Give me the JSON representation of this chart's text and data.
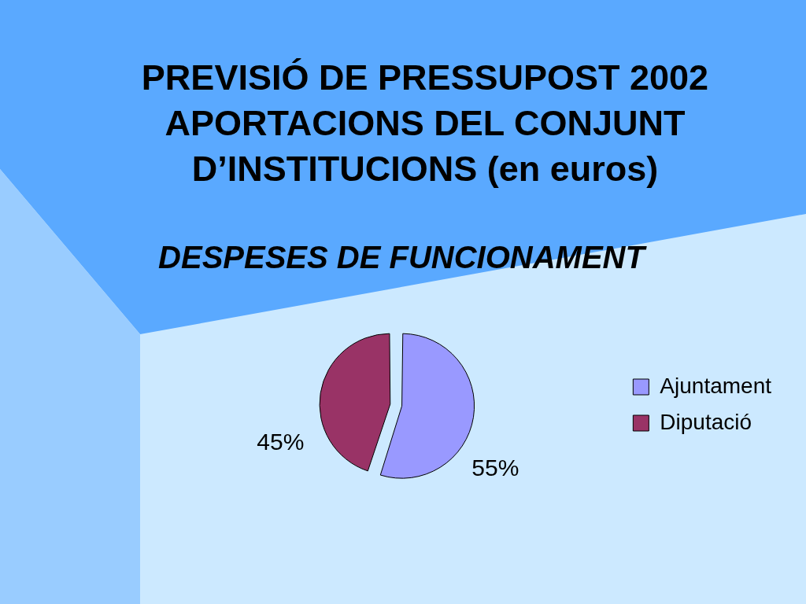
{
  "chart_data": {
    "type": "pie",
    "title": "PREVISIÓ DE PRESSUPOST 2002 APORTACIONS DEL CONJUNT D’INSTITUCIONS (en euros)",
    "subtitle": "DESPESES DE FUNCIONAMENT",
    "categories": [
      "Ajuntament",
      "Diputació"
    ],
    "values": [
      55,
      45
    ],
    "colors": [
      "#9999ff",
      "#993366"
    ],
    "value_labels": [
      "55%",
      "45%"
    ],
    "legend": "right"
  }
}
